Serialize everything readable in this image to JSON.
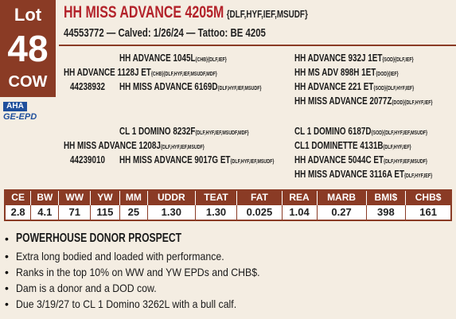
{
  "lot": {
    "label": "Lot",
    "number": "48",
    "sex": "COW"
  },
  "logo": {
    "line1": "AHA",
    "line2": "GE-EPD"
  },
  "header": {
    "name": "HH MISS ADVANCE 4205M",
    "tags": "{DLF,HYF,IEF,MSUDF}",
    "details": "44553772 — Calved: 1/26/24 — Tattoo: BE 4205"
  },
  "pedigree": [
    {
      "entries": [
        {
          "name": "HH ADVANCE 1045L",
          "tags": "{CHB}{DLF,IEF}"
        },
        {
          "name": "HH ADVANCE 1128J ET",
          "tags": "{CHB}{DLF,HYF,IEF,MSUDF,MDF}"
        },
        {
          "reg": "44238932",
          "name": "HH MISS ADVANCE 6169D",
          "tags": "{DLF,HYF,IEF,MSUDF}"
        },
        {
          "name": "HH ADVANCE 932J 1ET",
          "tags": "{SOD}{DLF,IEF}"
        },
        {
          "name": "HH MS ADV 898H 1ET",
          "tags": "{DOD}{IEF}"
        },
        {
          "name": "HH ADVANCE 221 ET",
          "tags": "{SOD}{DLF,HYF,IEF}"
        },
        {
          "name": "HH MISS ADVANCE 2077Z",
          "tags": "{DOD}{DLF,HYF,IEF}"
        }
      ]
    },
    {
      "entries": [
        {
          "name": "CL 1 DOMINO 8232F",
          "tags": "{DLF,HYF,IEF,MSUDF,MDF}"
        },
        {
          "name": "HH MISS ADVANCE 1208J",
          "tags": "{DLF,HYF,IEF,MSUDF}"
        },
        {
          "reg": "44239010",
          "name": "HH MISS ADVANCE 9017G ET",
          "tags": "{DLF,HYF,IEF,MSUDF}"
        },
        {
          "name": "CL 1 DOMINO 6187D",
          "tags": "{SOD}{DLF,HYF,IEF,MSUDF}"
        },
        {
          "name": "CL1 DOMINETTE 4131B",
          "tags": "{DLF,HYF,IEF}"
        },
        {
          "name": "HH ADVANCE 5044C ET",
          "tags": "{DLF,HYF,IEF,MSUDF}"
        },
        {
          "name": "HH MISS ADVANCE 3116A ET",
          "tags": "{DLF,HYF,IEF}"
        }
      ]
    }
  ],
  "epd_table": {
    "headers": [
      "CE",
      "BW",
      "WW",
      "YW",
      "MM",
      "UDDR",
      "TEAT",
      "FAT",
      "REA",
      "MARB",
      "BMI$",
      "CHB$"
    ],
    "values": [
      "2.8",
      "4.1",
      "71",
      "115",
      "25",
      "1.30",
      "1.30",
      "0.025",
      "1.04",
      "0.27",
      "398",
      "161"
    ]
  },
  "notes": {
    "headline": "POWERHOUSE DONOR PROSPECT",
    "items": [
      "Extra long bodied and loaded with performance.",
      "Ranks in the top 10% on WW and YW EPDs and CHB$.",
      "Dam is a donor and a DOD cow.",
      "Due 3/19/27 to CL 1 Domino 3262L with a bull calf."
    ]
  }
}
